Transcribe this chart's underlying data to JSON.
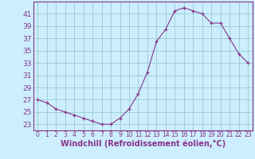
{
  "hours": [
    0,
    1,
    2,
    3,
    4,
    5,
    6,
    7,
    8,
    9,
    10,
    11,
    12,
    13,
    14,
    15,
    16,
    17,
    18,
    19,
    20,
    21,
    22,
    23
  ],
  "values": [
    27,
    26.5,
    25.5,
    25,
    24.5,
    24,
    23.5,
    23,
    23,
    24,
    25.5,
    28,
    31.5,
    36.5,
    38.5,
    41.5,
    42,
    41.5,
    41,
    39.5,
    39.5,
    37,
    34.5,
    33
  ],
  "line_color": "#883388",
  "marker": "+",
  "bg_color": "#cceeff",
  "grid_color": "#99cccc",
  "xlabel": "Windchill (Refroidissement éolien,°C)",
  "yticks": [
    23,
    25,
    27,
    29,
    31,
    33,
    35,
    37,
    39,
    41
  ],
  "xticks": [
    0,
    1,
    2,
    3,
    4,
    5,
    6,
    7,
    8,
    9,
    10,
    11,
    12,
    13,
    14,
    15,
    16,
    17,
    18,
    19,
    20,
    21,
    22,
    23
  ],
  "ylim": [
    22.0,
    43.0
  ],
  "xlim": [
    -0.5,
    23.5
  ],
  "tick_color": "#883388",
  "xlabel_color": "#883388",
  "xlabel_fontsize": 7,
  "ytick_fontsize": 6.5,
  "xtick_fontsize": 5.5,
  "spine_color": "#883388"
}
